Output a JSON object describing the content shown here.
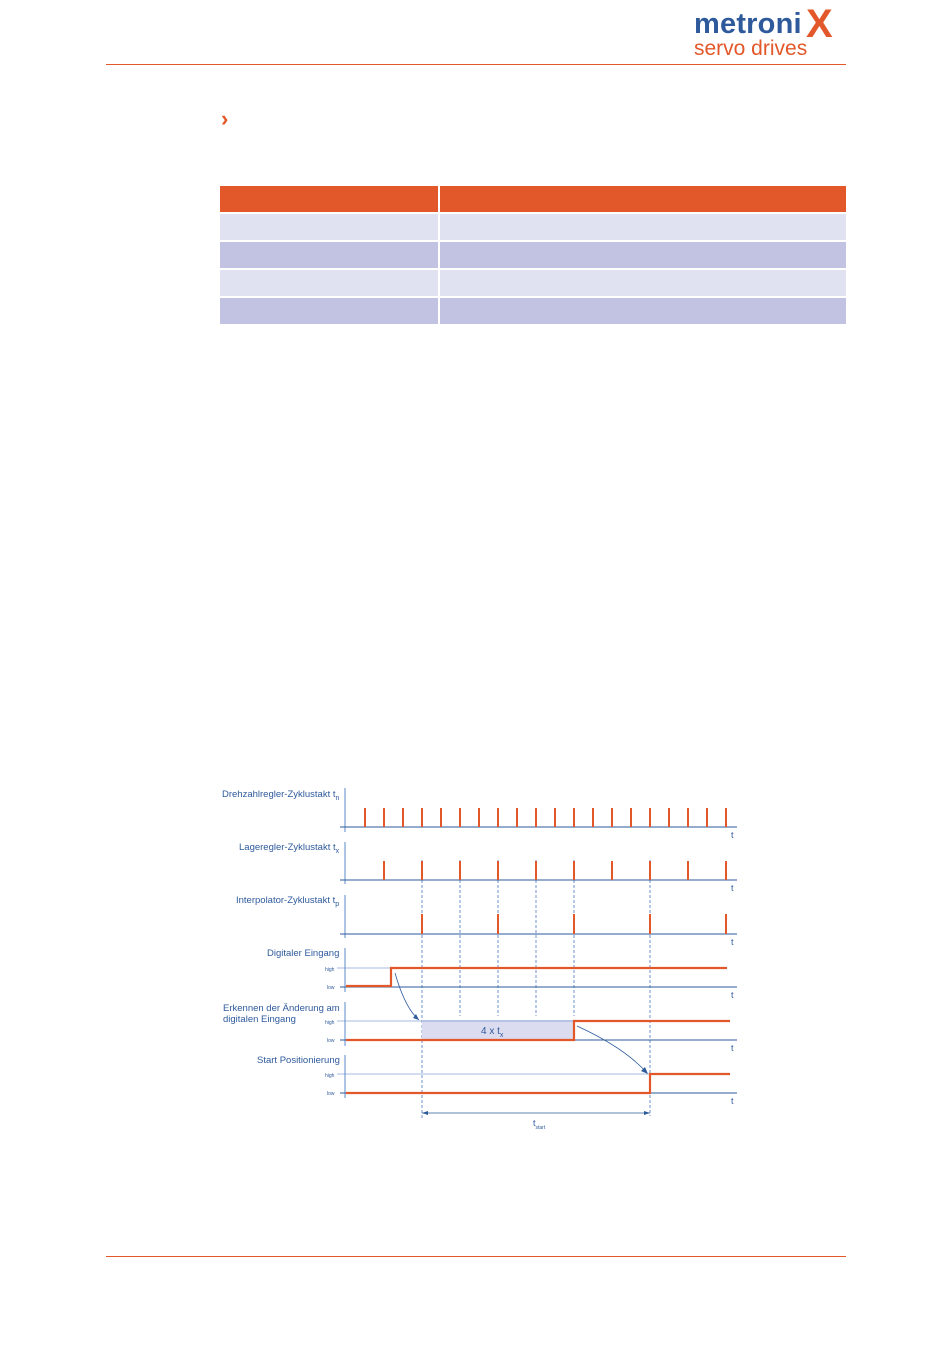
{
  "header": {
    "logo_top": "metroni",
    "logo_x": "X",
    "logo_sub": "servo drives"
  },
  "bullet_icon": "chevron-right-icon",
  "colors": {
    "accent": "#e3582a",
    "brand_blue": "#2e5a9c",
    "row_light": "#e0e2f2",
    "row_dark": "#c2c3e2"
  },
  "diagram": {
    "axis_t": "t",
    "high": "high",
    "low": "low",
    "label_tn": "Drehzahlregler-Zyklustakt t",
    "label_tn_sub": "n",
    "label_tx": "Lageregler-Zyklustakt t",
    "label_tx_sub": "x",
    "label_tp": "Interpolator-Zyklustakt t",
    "label_tp_sub": "p",
    "label_digital": "Digitaler Eingang",
    "label_detect_1": "Erkennen der Änderung am",
    "label_detect_2": "digitalen Eingang",
    "label_start": "Start Positionierung",
    "box_label": "4 x  t",
    "box_label_sub": "x",
    "tstart": "t",
    "tstart_sub": "start"
  }
}
